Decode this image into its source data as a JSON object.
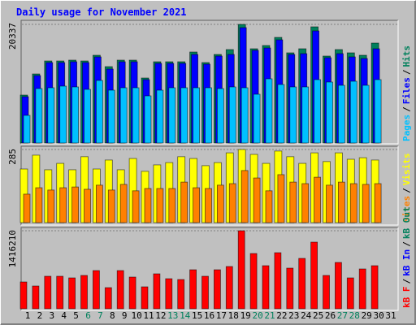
{
  "title": "Daily usage for November 2021",
  "separator": "/",
  "categories": [
    "1",
    "2",
    "3",
    "4",
    "5",
    "6",
    "7",
    "8",
    "9",
    "10",
    "11",
    "12",
    "13",
    "14",
    "15",
    "16",
    "17",
    "18",
    "19",
    "20",
    "21",
    "22",
    "23",
    "24",
    "25",
    "26",
    "27",
    "28",
    "29",
    "30",
    "31"
  ],
  "category_colors": [
    "#000000",
    "#000000",
    "#000000",
    "#000000",
    "#000000",
    "#00805c",
    "#00805c",
    "#000000",
    "#000000",
    "#000000",
    "#000000",
    "#000000",
    "#00805c",
    "#00805c",
    "#000000",
    "#000000",
    "#000000",
    "#000000",
    "#000000",
    "#00805c",
    "#00805c",
    "#000000",
    "#000000",
    "#000000",
    "#000000",
    "#000000",
    "#00805c",
    "#00805c",
    "#000000",
    "#000000",
    "#000000"
  ],
  "chart_data": [
    {
      "type": "bar",
      "ylim": [
        0,
        20337
      ],
      "yticks": [
        20337
      ],
      "series": [
        {
          "name": "Hits",
          "color": "#00805c",
          "values": [
            8218,
            11840,
            14069,
            14069,
            14208,
            14069,
            15044,
            13094,
            14208,
            14208,
            11144,
            13930,
            13930,
            13930,
            15601,
            13790,
            15183,
            16019,
            20337,
            16158,
            16715,
            18108,
            15462,
            16158,
            19919,
            14905,
            16019,
            15462,
            15044,
            17133,
            null
          ]
        },
        {
          "name": "Files",
          "color": "#0000ff",
          "values": [
            7939,
            11561,
            13790,
            13790,
            13930,
            13790,
            14765,
            12676,
            13930,
            13930,
            10865,
            13651,
            13651,
            13651,
            15183,
            13512,
            14905,
            15183,
            19779,
            15880,
            16297,
            17690,
            15183,
            15322,
            19222,
            14626,
            15322,
            14765,
            14487,
            16158,
            null
          ]
        },
        {
          "name": "Pages",
          "color": "#00c0ff",
          "values": [
            4736,
            9333,
            9472,
            9750,
            9611,
            9193,
            10726,
            9054,
            9472,
            9472,
            8079,
            9054,
            9472,
            9472,
            9472,
            9472,
            9333,
            9611,
            9472,
            8358,
            11004,
            10029,
            9611,
            9611,
            10865,
            10447,
            9890,
            10586,
            9890,
            10865,
            null
          ]
        }
      ]
    },
    {
      "type": "bar",
      "ylim": [
        0,
        285
      ],
      "yticks": [
        285
      ],
      "series": [
        {
          "name": "Visits",
          "color": "#ffff00",
          "values": [
            209,
            263,
            206,
            231,
            206,
            257,
            209,
            244,
            206,
            250,
            200,
            225,
            234,
            257,
            250,
            222,
            234,
            272,
            285,
            266,
            231,
            279,
            257,
            231,
            272,
            238,
            272,
            247,
            253,
            244,
            null
          ]
        },
        {
          "name": "Sites",
          "color": "#ff8000",
          "values": [
            111,
            136,
            127,
            136,
            139,
            130,
            146,
            127,
            149,
            124,
            133,
            133,
            133,
            158,
            136,
            133,
            146,
            152,
            203,
            174,
            124,
            187,
            158,
            152,
            177,
            146,
            158,
            152,
            149,
            152,
            null
          ]
        }
      ]
    },
    {
      "type": "bar",
      "ylim": [
        0,
        1416210
      ],
      "yticks": [
        1416210
      ],
      "series": [
        {
          "name": "kB F",
          "color": "#ff0000",
          "values": [
            486816,
            413056,
            590080,
            590080,
            560576,
            604832,
            693344,
            383552,
            693344,
            575328,
            398304,
            634336,
            545824,
            531072,
            708096,
            590080,
            708096,
            767104,
            1416210,
            1003136,
            781856,
            1017888,
            737600,
            914624,
            1209664,
            604832,
            840864,
            560576,
            722848,
            781856,
            null
          ]
        }
      ],
      "legend_extra": [
        {
          "name": "kB In",
          "color": "#0000ff"
        },
        {
          "name": "kB Out",
          "color": "#00805c"
        }
      ]
    }
  ]
}
